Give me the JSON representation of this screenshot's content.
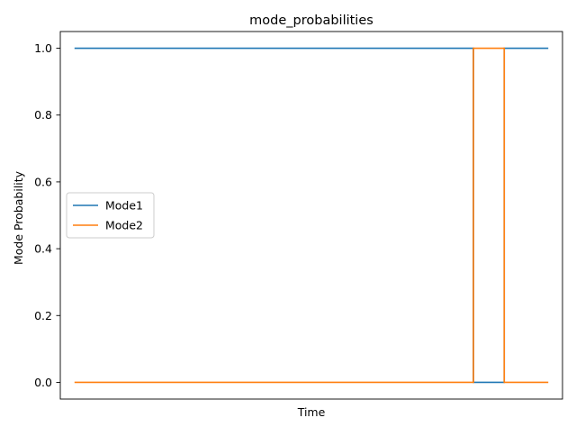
{
  "chart_data": {
    "type": "line",
    "title": "mode_probabilities",
    "xlabel": "Time",
    "ylabel": "Mode Probability",
    "xlim": [
      -0.03,
      1.03
    ],
    "ylim": [
      -0.05,
      1.05
    ],
    "yticks": [
      0.0,
      0.2,
      0.4,
      0.6,
      0.8,
      1.0
    ],
    "ytick_labels": [
      "0.0",
      "0.2",
      "0.4",
      "0.6",
      "0.8",
      "1.0"
    ],
    "xticks_visible": false,
    "grid": false,
    "legend_placement": "center-left",
    "series": [
      {
        "name": "Mode1",
        "color": "#1f77b4",
        "x": [
          0.0,
          0.842,
          0.842,
          0.907,
          0.907,
          1.0
        ],
        "y": [
          1.0,
          1.0,
          0.0,
          0.0,
          1.0,
          1.0
        ]
      },
      {
        "name": "Mode2",
        "color": "#ff7f0e",
        "x": [
          0.0,
          0.842,
          0.842,
          0.907,
          0.907,
          1.0
        ],
        "y": [
          0.0,
          0.0,
          1.0,
          1.0,
          0.0,
          0.0
        ]
      }
    ]
  }
}
